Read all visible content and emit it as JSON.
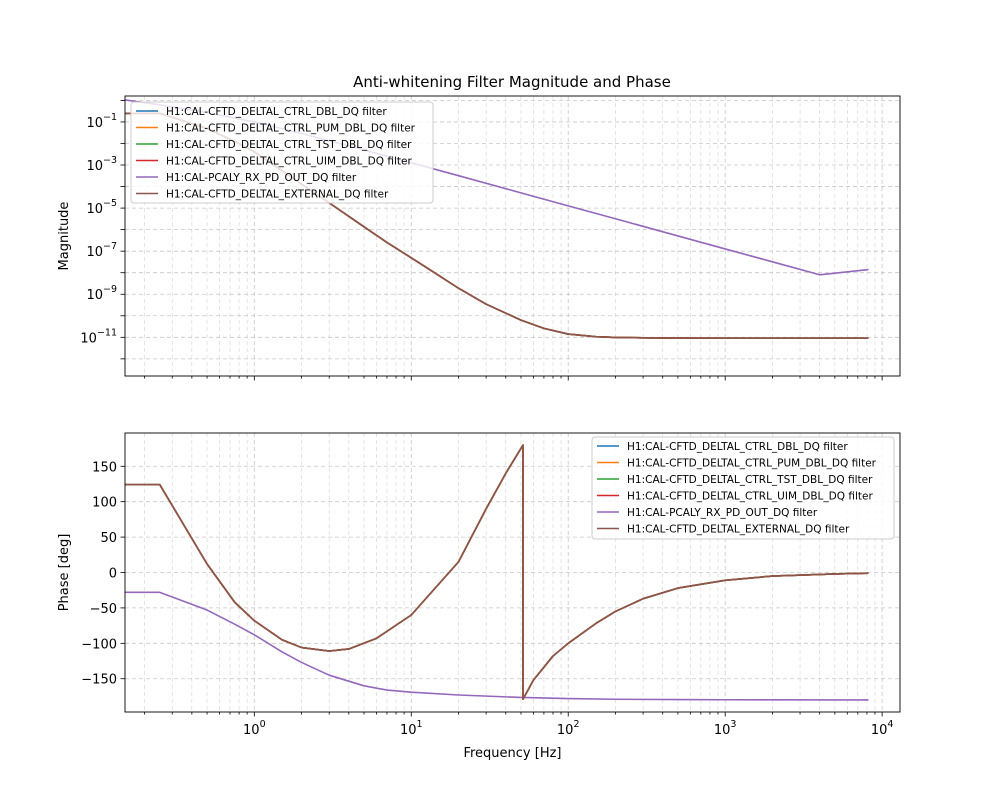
{
  "figure": {
    "title": "Anti-whitening Filter Magnitude and Phase"
  },
  "chart_data": [
    {
      "type": "line",
      "panel": "magnitude",
      "xscale": "log",
      "yscale": "log",
      "xlim": [
        0.15,
        13000
      ],
      "ylim": [
        1.6e-13,
        1.6
      ],
      "ylabel": "Magnitude",
      "xlabel": "",
      "grid": true,
      "legend_location": "upper-left",
      "xticks": [
        1,
        10,
        100,
        1000,
        10000
      ],
      "xtick_labels": [
        "",
        "",
        "",
        "",
        ""
      ],
      "yticks": [
        1e-11,
        1e-09,
        1e-07,
        1e-05,
        0.001,
        0.1
      ],
      "ytick_labels": [
        {
          "base": "10",
          "exp": "−11"
        },
        {
          "base": "10",
          "exp": "−9"
        },
        {
          "base": "10",
          "exp": "−7"
        },
        {
          "base": "10",
          "exp": "−5"
        },
        {
          "base": "10",
          "exp": "−3"
        },
        {
          "base": "10",
          "exp": "−1"
        }
      ],
      "series": [
        {
          "name": "H1:CAL-CFTD_DELTAL_CTRL_DBL_DQ filter",
          "color": "#1f77b4",
          "x": [
            0.15,
            0.25,
            0.5,
            0.75,
            1,
            1.5,
            2,
            3,
            5,
            7,
            10,
            15,
            20,
            30,
            50,
            70,
            100,
            150,
            200,
            300,
            500,
            1000,
            2000,
            4000,
            8192
          ],
          "y": [
            0.25,
            0.25,
            0.05,
            0.0124,
            0.0041,
            0.00055,
            0.00013,
            1.75e-05,
            1.35e-06,
            2.55e-07,
            4.9e-08,
            7.4e-09,
            1.9e-09,
            3.45e-10,
            6.3e-11,
            2.6e-11,
            1.42e-11,
            1.07e-11,
            9.9e-12,
            9.5e-12,
            9.2e-12,
            9.1e-12,
            9.1e-12,
            9.1e-12,
            9.1e-12
          ]
        },
        {
          "name": "H1:CAL-CFTD_DELTAL_CTRL_PUM_DBL_DQ filter",
          "color": "#ff7f0e",
          "x": [
            0.15,
            0.25,
            0.5,
            0.75,
            1,
            1.5,
            2,
            3,
            5,
            7,
            10,
            15,
            20,
            30,
            50,
            70,
            100,
            150,
            200,
            300,
            500,
            1000,
            2000,
            4000,
            8192
          ],
          "y": [
            0.25,
            0.25,
            0.05,
            0.0124,
            0.0041,
            0.00055,
            0.00013,
            1.75e-05,
            1.35e-06,
            2.55e-07,
            4.9e-08,
            7.4e-09,
            1.9e-09,
            3.45e-10,
            6.3e-11,
            2.6e-11,
            1.42e-11,
            1.07e-11,
            9.9e-12,
            9.5e-12,
            9.2e-12,
            9.1e-12,
            9.1e-12,
            9.1e-12,
            9.1e-12
          ]
        },
        {
          "name": "H1:CAL-CFTD_DELTAL_CTRL_TST_DBL_DQ filter",
          "color": "#2ca02c",
          "x": [
            0.15,
            0.25,
            0.5,
            0.75,
            1,
            1.5,
            2,
            3,
            5,
            7,
            10,
            15,
            20,
            30,
            50,
            70,
            100,
            150,
            200,
            300,
            500,
            1000,
            2000,
            4000,
            8192
          ],
          "y": [
            0.25,
            0.25,
            0.05,
            0.0124,
            0.0041,
            0.00055,
            0.00013,
            1.75e-05,
            1.35e-06,
            2.55e-07,
            4.9e-08,
            7.4e-09,
            1.9e-09,
            3.45e-10,
            6.3e-11,
            2.6e-11,
            1.42e-11,
            1.07e-11,
            9.9e-12,
            9.5e-12,
            9.2e-12,
            9.1e-12,
            9.1e-12,
            9.1e-12,
            9.1e-12
          ]
        },
        {
          "name": "H1:CAL-CFTD_DELTAL_CTRL_UIM_DBL_DQ filter",
          "color": "#d62728",
          "x": [
            0.15,
            0.25,
            0.5,
            0.75,
            1,
            1.5,
            2,
            3,
            5,
            7,
            10,
            15,
            20,
            30,
            50,
            70,
            100,
            150,
            200,
            300,
            500,
            1000,
            2000,
            4000,
            8192
          ],
          "y": [
            0.25,
            0.25,
            0.05,
            0.0124,
            0.0041,
            0.00055,
            0.00013,
            1.75e-05,
            1.35e-06,
            2.55e-07,
            4.9e-08,
            7.4e-09,
            1.9e-09,
            3.45e-10,
            6.3e-11,
            2.6e-11,
            1.42e-11,
            1.07e-11,
            9.9e-12,
            9.5e-12,
            9.2e-12,
            9.1e-12,
            9.1e-12,
            9.1e-12,
            9.1e-12
          ]
        },
        {
          "name": "H1:CAL-PCALY_RX_PD_OUT_DQ filter",
          "color": "#9467bd",
          "x": [
            0.15,
            0.25,
            0.5,
            1,
            2,
            5,
            10,
            20,
            50,
            100,
            200,
            500,
            1000,
            2000,
            4000,
            8192
          ],
          "y": [
            1.05,
            0.62,
            0.27,
            0.1,
            0.029,
            0.005,
            0.00127,
            0.00032,
            5.1e-05,
            1.27e-05,
            3.2e-06,
            5.1e-07,
            1.27e-07,
            3.2e-08,
            8e-09,
            1.4e-08
          ]
        },
        {
          "name": "H1:CAL-CFTD_DELTAL_EXTERNAL_DQ filter",
          "color": "#8c564b",
          "x": [
            0.15,
            0.25,
            0.5,
            0.75,
            1,
            1.5,
            2,
            3,
            5,
            7,
            10,
            15,
            20,
            30,
            50,
            70,
            100,
            150,
            200,
            300,
            500,
            1000,
            2000,
            4000,
            8192
          ],
          "y": [
            0.25,
            0.25,
            0.05,
            0.0124,
            0.0041,
            0.00055,
            0.00013,
            1.75e-05,
            1.35e-06,
            2.55e-07,
            4.9e-08,
            7.4e-09,
            1.9e-09,
            3.45e-10,
            6.3e-11,
            2.6e-11,
            1.42e-11,
            1.07e-11,
            9.9e-12,
            9.5e-12,
            9.2e-12,
            9.1e-12,
            9.1e-12,
            9.1e-12,
            9.1e-12
          ]
        }
      ]
    },
    {
      "type": "line",
      "panel": "phase",
      "xscale": "log",
      "yscale": "linear",
      "xlim": [
        0.15,
        13000
      ],
      "ylim": [
        -197,
        197
      ],
      "ylabel": "Phase [deg]",
      "xlabel": "Frequency [Hz]",
      "grid": true,
      "legend_location": "upper-right",
      "xticks": [
        1,
        10,
        100,
        1000,
        10000
      ],
      "xtick_labels": [
        {
          "base": "10",
          "exp": "0"
        },
        {
          "base": "10",
          "exp": "1"
        },
        {
          "base": "10",
          "exp": "2"
        },
        {
          "base": "10",
          "exp": "3"
        },
        {
          "base": "10",
          "exp": "4"
        }
      ],
      "yticks": [
        -150,
        -100,
        -50,
        0,
        50,
        100,
        150
      ],
      "ytick_labels": [
        "−150",
        "−100",
        "−50",
        "0",
        "50",
        "100",
        "150"
      ],
      "series": [
        {
          "name": "H1:CAL-CFTD_DELTAL_CTRL_DBL_DQ filter",
          "color": "#1f77b4",
          "x": [
            0.15,
            0.25,
            0.5,
            0.75,
            1,
            1.5,
            2,
            3,
            4,
            6,
            10,
            20,
            30,
            40,
            51.5,
            51.5,
            60,
            80,
            100,
            150,
            200,
            300,
            500,
            1000,
            2000,
            5000,
            8192
          ],
          "y": [
            124,
            124,
            12,
            -42,
            -68,
            -95,
            -106,
            -111,
            -108,
            -93,
            -60,
            15,
            90,
            140,
            180,
            -179,
            -152,
            -118,
            -100,
            -72,
            -55,
            -37,
            -22,
            -11,
            -5,
            -2,
            -1
          ]
        },
        {
          "name": "H1:CAL-CFTD_DELTAL_CTRL_PUM_DBL_DQ filter",
          "color": "#ff7f0e",
          "x": [
            0.15,
            0.25,
            0.5,
            0.75,
            1,
            1.5,
            2,
            3,
            4,
            6,
            10,
            20,
            30,
            40,
            51.5,
            51.5,
            60,
            80,
            100,
            150,
            200,
            300,
            500,
            1000,
            2000,
            5000,
            8192
          ],
          "y": [
            124,
            124,
            12,
            -42,
            -68,
            -95,
            -106,
            -111,
            -108,
            -93,
            -60,
            15,
            90,
            140,
            180,
            -179,
            -152,
            -118,
            -100,
            -72,
            -55,
            -37,
            -22,
            -11,
            -5,
            -2,
            -1
          ]
        },
        {
          "name": "H1:CAL-CFTD_DELTAL_CTRL_TST_DBL_DQ filter",
          "color": "#2ca02c",
          "x": [
            0.15,
            0.25,
            0.5,
            0.75,
            1,
            1.5,
            2,
            3,
            4,
            6,
            10,
            20,
            30,
            40,
            51.5,
            51.5,
            60,
            80,
            100,
            150,
            200,
            300,
            500,
            1000,
            2000,
            5000,
            8192
          ],
          "y": [
            124,
            124,
            12,
            -42,
            -68,
            -95,
            -106,
            -111,
            -108,
            -93,
            -60,
            15,
            90,
            140,
            180,
            -179,
            -152,
            -118,
            -100,
            -72,
            -55,
            -37,
            -22,
            -11,
            -5,
            -2,
            -1
          ]
        },
        {
          "name": "H1:CAL-CFTD_DELTAL_CTRL_UIM_DBL_DQ filter",
          "color": "#d62728",
          "x": [
            0.15,
            0.25,
            0.5,
            0.75,
            1,
            1.5,
            2,
            3,
            4,
            6,
            10,
            20,
            30,
            40,
            51.5,
            51.5,
            60,
            80,
            100,
            150,
            200,
            300,
            500,
            1000,
            2000,
            5000,
            8192
          ],
          "y": [
            124,
            124,
            12,
            -42,
            -68,
            -95,
            -106,
            -111,
            -108,
            -93,
            -60,
            15,
            90,
            140,
            180,
            -179,
            -152,
            -118,
            -100,
            -72,
            -55,
            -37,
            -22,
            -11,
            -5,
            -2,
            -1
          ]
        },
        {
          "name": "H1:CAL-PCALY_RX_PD_OUT_DQ filter",
          "color": "#9467bd",
          "x": [
            0.15,
            0.25,
            0.5,
            0.75,
            1,
            1.5,
            2,
            3,
            5,
            7,
            10,
            20,
            50,
            100,
            200,
            500,
            1000,
            2000,
            5000,
            8192
          ],
          "y": [
            -28,
            -28,
            -53,
            -73,
            -88,
            -112,
            -127,
            -145,
            -160,
            -166,
            -169,
            -173,
            -176.5,
            -178,
            -179,
            -179.5,
            -179.7,
            -179.8,
            -179.9,
            -180
          ]
        },
        {
          "name": "H1:CAL-CFTD_DELTAL_EXTERNAL_DQ filter",
          "color": "#8c564b",
          "x": [
            0.15,
            0.25,
            0.5,
            0.75,
            1,
            1.5,
            2,
            3,
            4,
            6,
            10,
            20,
            30,
            40,
            51.5,
            51.5,
            60,
            80,
            100,
            150,
            200,
            300,
            500,
            1000,
            2000,
            5000,
            8192
          ],
          "y": [
            124,
            124,
            12,
            -42,
            -68,
            -95,
            -106,
            -111,
            -108,
            -93,
            -60,
            15,
            90,
            140,
            180,
            -179,
            -152,
            -118,
            -100,
            -72,
            -55,
            -37,
            -22,
            -11,
            -5,
            -2,
            -1
          ]
        }
      ]
    }
  ]
}
